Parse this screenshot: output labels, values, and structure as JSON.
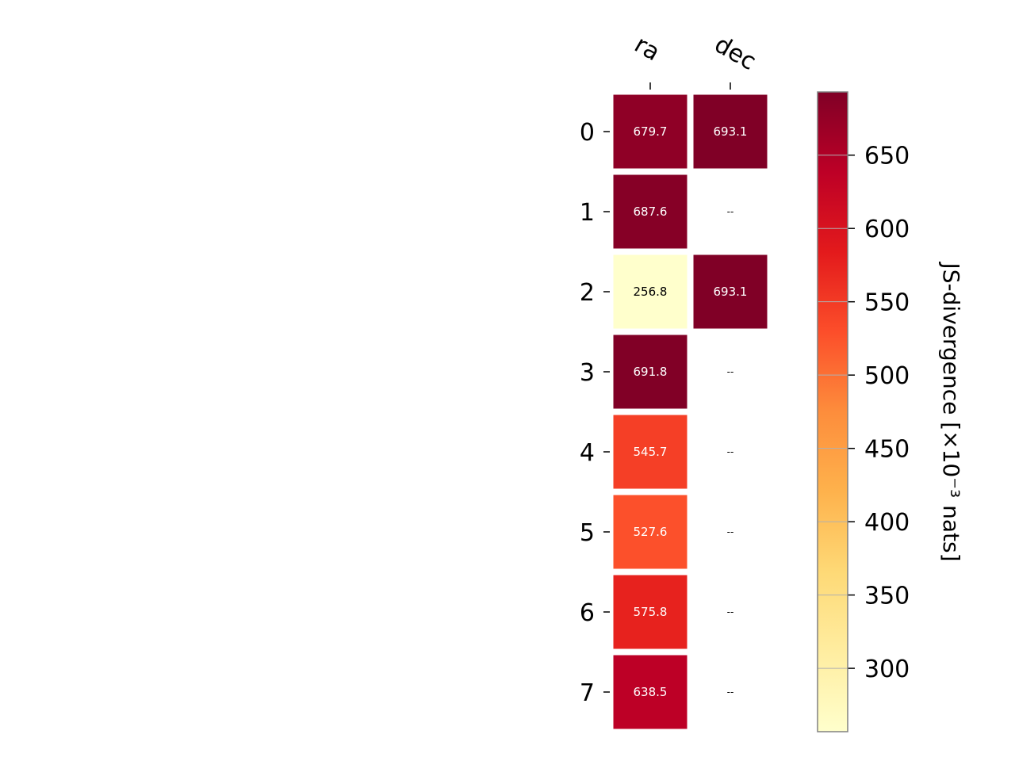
{
  "chart_data": {
    "type": "heatmap",
    "title": "",
    "row_labels": [
      "0",
      "1",
      "2",
      "3",
      "4",
      "5",
      "6",
      "7"
    ],
    "column_labels": [
      "ra",
      "dec"
    ],
    "values": [
      [
        679.7,
        693.1
      ],
      [
        687.6,
        null
      ],
      [
        256.8,
        693.1
      ],
      [
        691.8,
        null
      ],
      [
        545.7,
        null
      ],
      [
        527.6,
        null
      ],
      [
        575.8,
        null
      ],
      [
        638.5,
        null
      ]
    ],
    "missing_label": "--",
    "colormap": "YlOrRd",
    "colorbar": {
      "label": "JS-divergence [×10⁻³ nats]",
      "vmin": 256.8,
      "vmax": 693.1,
      "ticks": [
        300,
        350,
        400,
        450,
        500,
        550,
        600,
        650
      ],
      "tick_labels": [
        "300",
        "350",
        "400",
        "450",
        "500",
        "550",
        "600",
        "650"
      ]
    },
    "colormap_stops": [
      "#ffffcc",
      "#ffeda0",
      "#fed976",
      "#feb24c",
      "#fd8d3c",
      "#fc4e2a",
      "#e31a1c",
      "#bd0026",
      "#800026"
    ]
  }
}
